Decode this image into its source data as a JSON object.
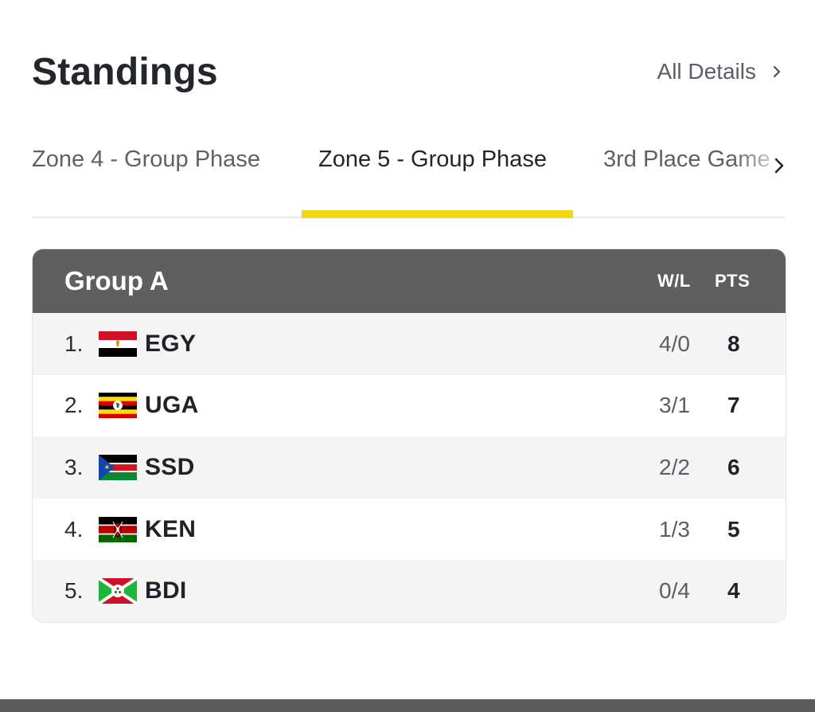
{
  "header": {
    "title": "Standings",
    "details_label": "All Details"
  },
  "tabs": [
    {
      "label": "Zone 4 - Group Phase",
      "active": false
    },
    {
      "label": "Zone 5 - Group Phase",
      "active": true
    },
    {
      "label": "3rd Place Game",
      "active": false
    }
  ],
  "table": {
    "group_name": "Group A",
    "col_wl": "W/L",
    "col_pts": "PTS",
    "rows": [
      {
        "rank": "1.",
        "team": "EGY",
        "wl": "4/0",
        "pts": "8",
        "flag_icon": "egypt-flag-icon"
      },
      {
        "rank": "2.",
        "team": "UGA",
        "wl": "3/1",
        "pts": "7",
        "flag_icon": "uganda-flag-icon"
      },
      {
        "rank": "3.",
        "team": "SSD",
        "wl": "2/2",
        "pts": "6",
        "flag_icon": "south-sudan-flag-icon"
      },
      {
        "rank": "4.",
        "team": "KEN",
        "wl": "1/3",
        "pts": "5",
        "flag_icon": "kenya-flag-icon"
      },
      {
        "rank": "5.",
        "team": "BDI",
        "wl": "0/4",
        "pts": "4",
        "flag_icon": "burundi-flag-icon"
      }
    ]
  },
  "colors": {
    "accent": "#f3d816",
    "table_header": "#5f5f5f"
  }
}
